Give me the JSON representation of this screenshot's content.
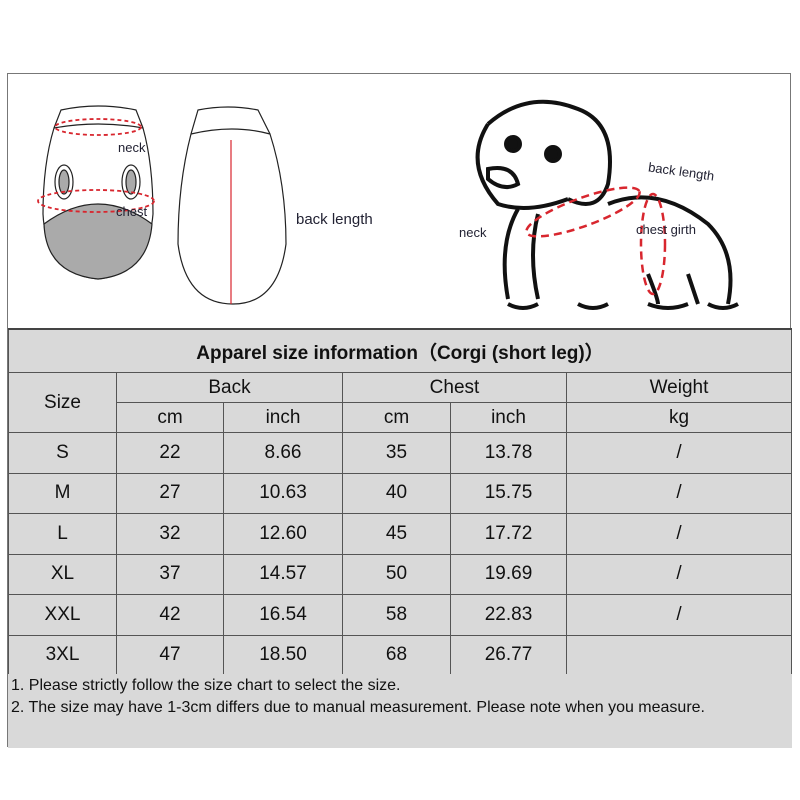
{
  "illustration": {
    "vest_front": {
      "neck": "neck",
      "chest": "chest"
    },
    "vest_back": {
      "back_length": "back length"
    },
    "dog": {
      "back_length": "back length",
      "neck": "neck",
      "chest_girth": "chest girth"
    }
  },
  "table": {
    "title": "Apparel  size  information（Corgi (short leg)）",
    "headers": {
      "size": "Size",
      "back": "Back",
      "chest": "Chest",
      "weight": "Weight",
      "cm": "cm",
      "inch": "inch",
      "kg": "kg"
    },
    "rows": [
      {
        "size": "S",
        "back_cm": "22",
        "back_inch": "8.66",
        "chest_cm": "35",
        "chest_inch": "13.78",
        "weight": "/"
      },
      {
        "size": "M",
        "back_cm": "27",
        "back_inch": "10.63",
        "chest_cm": "40",
        "chest_inch": "15.75",
        "weight": "/"
      },
      {
        "size": "L",
        "back_cm": "32",
        "back_inch": "12.60",
        "chest_cm": "45",
        "chest_inch": "17.72",
        "weight": "/"
      },
      {
        "size": "XL",
        "back_cm": "37",
        "back_inch": "14.57",
        "chest_cm": "50",
        "chest_inch": "19.69",
        "weight": "/"
      },
      {
        "size": "XXL",
        "back_cm": "42",
        "back_inch": "16.54",
        "chest_cm": "58",
        "chest_inch": "22.83",
        "weight": "/"
      },
      {
        "size": "3XL",
        "back_cm": "47",
        "back_inch": "18.50",
        "chest_cm": "68",
        "chest_inch": "26.77",
        "weight": ""
      }
    ]
  },
  "notes": [
    "1. Please strictly follow the size chart  to select the size.",
    "2. The size may have 1-3cm differs due to manual measurement. Please note when you measure."
  ],
  "colors": {
    "accent_red": "#d8262e",
    "table_bg": "#d9d9d9"
  }
}
